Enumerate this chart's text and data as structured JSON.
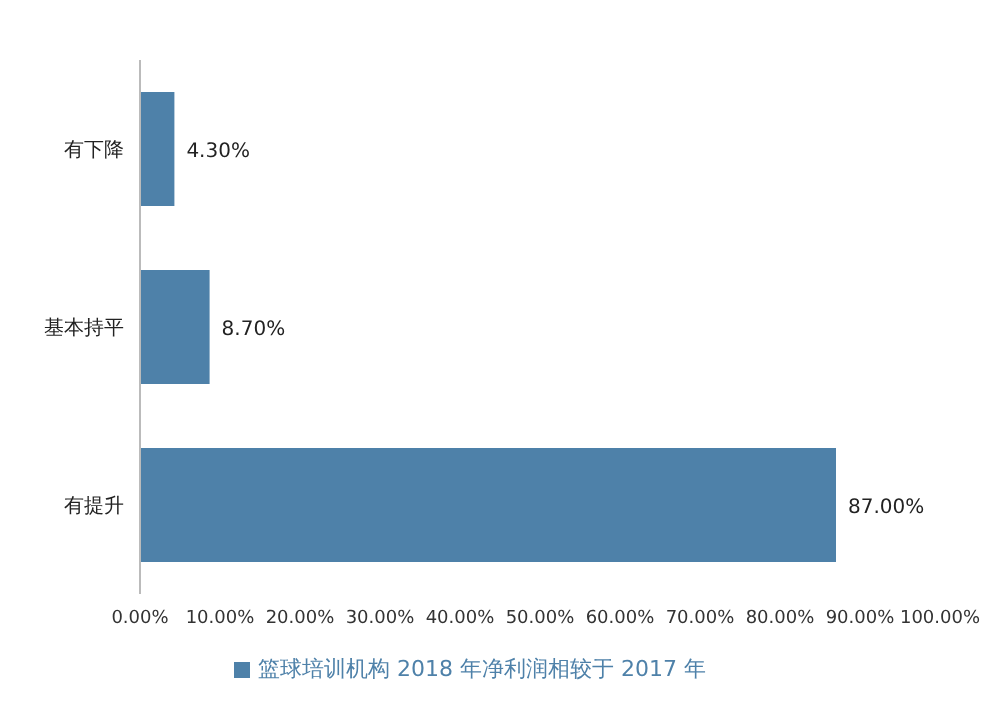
{
  "chart_data": {
    "type": "bar",
    "orientation": "horizontal",
    "categories": [
      "有下降",
      "基本持平",
      "有提升"
    ],
    "series": [
      {
        "name": "篮球培训机构 2018 年净利润相较于 2017 年",
        "color": "#4e81a9",
        "values": [
          4.3,
          8.7,
          87.0
        ],
        "value_labels": [
          "4.30%",
          "8.70%",
          "87.00%"
        ]
      }
    ],
    "xlim": [
      0,
      100
    ],
    "xticks": [
      {
        "value": 0,
        "label": "0.00%"
      },
      {
        "value": 10,
        "label": "10.00%"
      },
      {
        "value": 20,
        "label": "20.00%"
      },
      {
        "value": 30,
        "label": "30.00%"
      },
      {
        "value": 40,
        "label": "40.00%"
      },
      {
        "value": 50,
        "label": "50.00%"
      },
      {
        "value": 60,
        "label": "60.00%"
      },
      {
        "value": 70,
        "label": "70.00%"
      },
      {
        "value": 80,
        "label": "80.00%"
      },
      {
        "value": 90,
        "label": "90.00%"
      },
      {
        "value": 100,
        "label": "100.00%"
      }
    ],
    "legend": "bottom",
    "grid": false
  }
}
